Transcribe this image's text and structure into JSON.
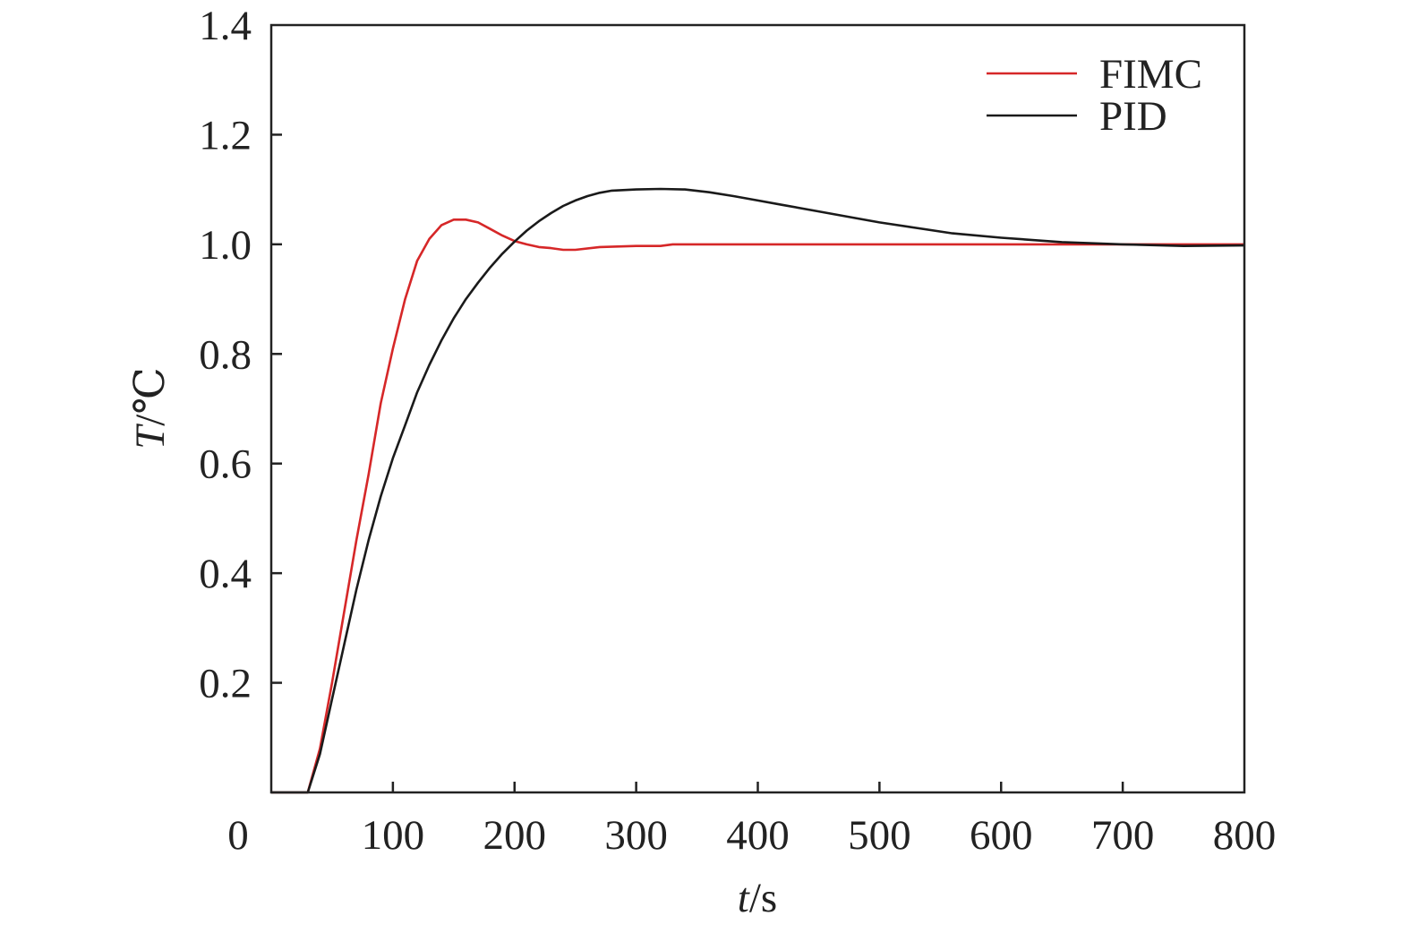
{
  "chart_data": {
    "type": "line",
    "title": "",
    "xlabel": {
      "var": "t",
      "unit": "/s"
    },
    "ylabel": {
      "var": "T",
      "unit": "/℃"
    },
    "xlim": [
      0,
      800
    ],
    "ylim": [
      0,
      1.4
    ],
    "x_ticks": [
      "0",
      "100",
      "200",
      "300",
      "400",
      "500",
      "600",
      "700",
      "800"
    ],
    "y_ticks": [
      "0.2",
      "0.4",
      "0.6",
      "0.8",
      "1.0",
      "1.2",
      "1.4"
    ],
    "grid": false,
    "legend_position": "top-right",
    "series": [
      {
        "name": "FIMC",
        "color": "#d62728",
        "points": [
          [
            0,
            0
          ],
          [
            30,
            0
          ],
          [
            40,
            0.08
          ],
          [
            50,
            0.2
          ],
          [
            60,
            0.33
          ],
          [
            70,
            0.46
          ],
          [
            80,
            0.58
          ],
          [
            90,
            0.71
          ],
          [
            100,
            0.81
          ],
          [
            110,
            0.9
          ],
          [
            120,
            0.97
          ],
          [
            130,
            1.01
          ],
          [
            140,
            1.035
          ],
          [
            150,
            1.045
          ],
          [
            160,
            1.045
          ],
          [
            170,
            1.04
          ],
          [
            180,
            1.028
          ],
          [
            190,
            1.016
          ],
          [
            200,
            1.006
          ],
          [
            210,
            1.0
          ],
          [
            220,
            0.995
          ],
          [
            230,
            0.993
          ],
          [
            240,
            0.99
          ],
          [
            250,
            0.99
          ],
          [
            270,
            0.995
          ],
          [
            300,
            0.997
          ],
          [
            320,
            0.997
          ],
          [
            330,
            1.0
          ],
          [
            400,
            1.0
          ],
          [
            500,
            1.0
          ],
          [
            600,
            1.0
          ],
          [
            700,
            1.0
          ],
          [
            800,
            1.0
          ]
        ]
      },
      {
        "name": "PID",
        "color": "#1a1a1a",
        "points": [
          [
            0,
            0
          ],
          [
            30,
            0
          ],
          [
            40,
            0.07
          ],
          [
            50,
            0.17
          ],
          [
            60,
            0.27
          ],
          [
            70,
            0.37
          ],
          [
            80,
            0.46
          ],
          [
            90,
            0.54
          ],
          [
            100,
            0.61
          ],
          [
            110,
            0.67
          ],
          [
            120,
            0.73
          ],
          [
            130,
            0.78
          ],
          [
            140,
            0.825
          ],
          [
            150,
            0.865
          ],
          [
            160,
            0.9
          ],
          [
            170,
            0.93
          ],
          [
            180,
            0.958
          ],
          [
            190,
            0.983
          ],
          [
            200,
            1.005
          ],
          [
            210,
            1.025
          ],
          [
            220,
            1.042
          ],
          [
            230,
            1.057
          ],
          [
            240,
            1.07
          ],
          [
            250,
            1.08
          ],
          [
            260,
            1.088
          ],
          [
            270,
            1.094
          ],
          [
            280,
            1.098
          ],
          [
            300,
            1.1
          ],
          [
            320,
            1.101
          ],
          [
            340,
            1.1
          ],
          [
            360,
            1.095
          ],
          [
            380,
            1.088
          ],
          [
            400,
            1.08
          ],
          [
            420,
            1.072
          ],
          [
            450,
            1.06
          ],
          [
            480,
            1.048
          ],
          [
            500,
            1.04
          ],
          [
            530,
            1.03
          ],
          [
            560,
            1.02
          ],
          [
            600,
            1.012
          ],
          [
            650,
            1.004
          ],
          [
            700,
            1.0
          ],
          [
            750,
            0.997
          ],
          [
            800,
            0.998
          ]
        ]
      }
    ]
  }
}
